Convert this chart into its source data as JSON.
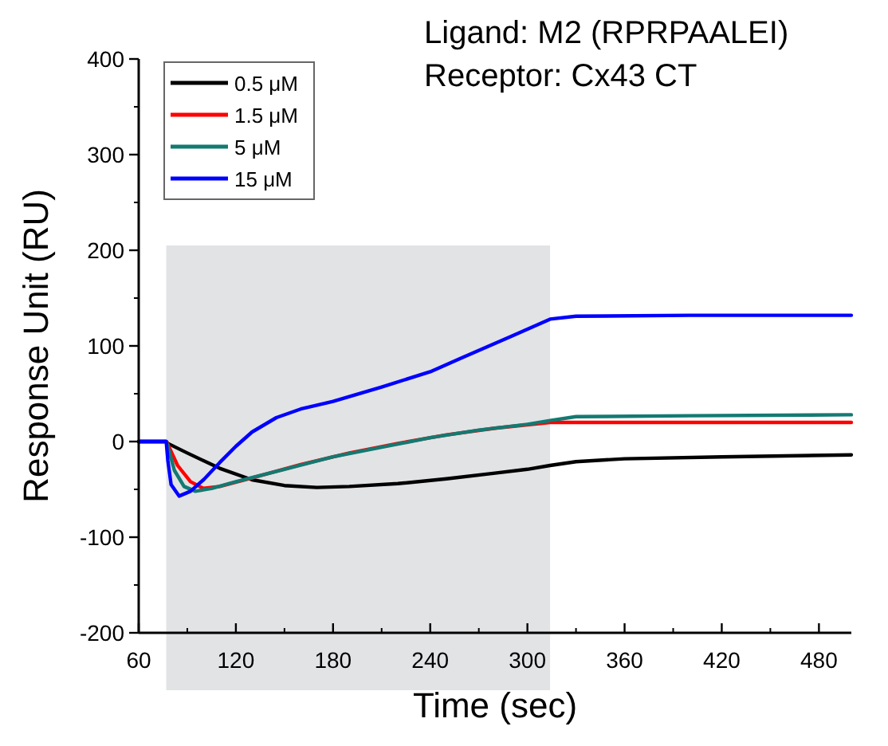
{
  "chart_data": {
    "type": "line",
    "title": "Ligand: M2 (RPRPAALEI)",
    "subtitle": "Receptor: Cx43 CT",
    "xlabel": "Time (sec)",
    "ylabel": "Response Unit (RU)",
    "xlim": [
      60,
      500
    ],
    "xticks": [
      60,
      120,
      180,
      240,
      300,
      360,
      420,
      480
    ],
    "ylim": [
      -200,
      400
    ],
    "yticks": [
      -200,
      -100,
      0,
      100,
      200,
      300,
      400
    ],
    "grid": false,
    "legend": "top left",
    "line_style": "solid",
    "marker": "none",
    "bands": [
      {
        "axis": "x",
        "from": 77,
        "to": 314,
        "color": "#e2e3e5"
      }
    ],
    "series": [
      {
        "name": "0.5 μM",
        "color": "#000000",
        "x": [
          60,
          77,
          78,
          90,
          110,
          130,
          150,
          170,
          190,
          220,
          250,
          280,
          300,
          314,
          330,
          360,
          420,
          500
        ],
        "values": [
          0,
          0,
          -2,
          -12,
          -28,
          -40,
          -46,
          -48,
          -47,
          -44,
          -39,
          -33,
          -29,
          -25,
          -21,
          -18,
          -16,
          -14
        ]
      },
      {
        "name": "1.5 μM",
        "color": "#ff0000",
        "x": [
          60,
          77,
          78,
          84,
          92,
          100,
          110,
          130,
          160,
          190,
          220,
          250,
          280,
          314,
          330,
          400,
          500
        ],
        "values": [
          0,
          0,
          -3,
          -25,
          -42,
          -49,
          -47,
          -38,
          -24,
          -12,
          -2,
          7,
          14,
          20,
          20,
          20,
          20
        ]
      },
      {
        "name": "5 μM",
        "color": "#137a72",
        "x": [
          60,
          77,
          78,
          82,
          88,
          95,
          105,
          120,
          150,
          180,
          210,
          240,
          270,
          300,
          314,
          330,
          400,
          500
        ],
        "values": [
          0,
          0,
          -5,
          -30,
          -47,
          -52,
          -49,
          -42,
          -29,
          -16,
          -6,
          4,
          12,
          18,
          22,
          26,
          27,
          28
        ]
      },
      {
        "name": "15 μM",
        "color": "#0000ff",
        "x": [
          60,
          77,
          78,
          80,
          85,
          92,
          100,
          110,
          120,
          130,
          145,
          160,
          180,
          210,
          240,
          260,
          290,
          314,
          330,
          400,
          500
        ],
        "values": [
          0,
          0,
          -20,
          -45,
          -57,
          -52,
          -40,
          -22,
          -5,
          10,
          25,
          34,
          42,
          57,
          73,
          88,
          110,
          128,
          131,
          132,
          132
        ]
      }
    ]
  }
}
